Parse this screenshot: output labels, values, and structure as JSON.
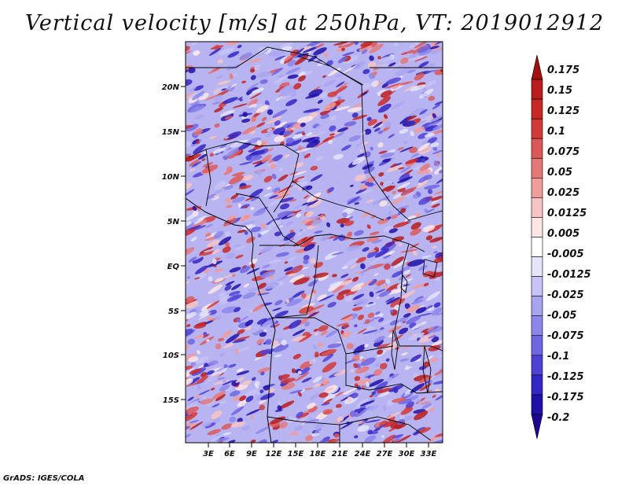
{
  "title": "Vertical velocity [m/s] at 250hPa, VT: 2019012912",
  "footer": "GrADS: IGES/COLA",
  "map": {
    "variable": "Vertical velocity",
    "units": "m/s",
    "level": "250hPa",
    "valid_time": "2019012912",
    "lat_ticks": [
      "20N",
      "15N",
      "10N",
      "5N",
      "EQ",
      "5S",
      "10S",
      "15S"
    ],
    "lon_ticks": [
      "3E",
      "6E",
      "9E",
      "12E",
      "15E",
      "18E",
      "21E",
      "24E",
      "27E",
      "30E",
      "33E"
    ]
  },
  "colorbar": {
    "labels": [
      "0.175",
      "0.15",
      "0.125",
      "0.1",
      "0.075",
      "0.05",
      "0.025",
      "0.0125",
      "0.005",
      "-0.005",
      "-0.0125",
      "-0.025",
      "-0.05",
      "-0.075",
      "-0.1",
      "-0.125",
      "-0.175",
      "-0.2"
    ],
    "colors": [
      "#a01010",
      "#b81c1c",
      "#c82828",
      "#d23a3a",
      "#dc5858",
      "#e47878",
      "#ee9c9c",
      "#f6c4c4",
      "#fce6e6",
      "#ffffff",
      "#e4e4fb",
      "#c6c4f6",
      "#a8a4f0",
      "#8c86ea",
      "#6e66e2",
      "#4e42d6",
      "#3426c4",
      "#2010a8",
      "#1a0890"
    ]
  }
}
